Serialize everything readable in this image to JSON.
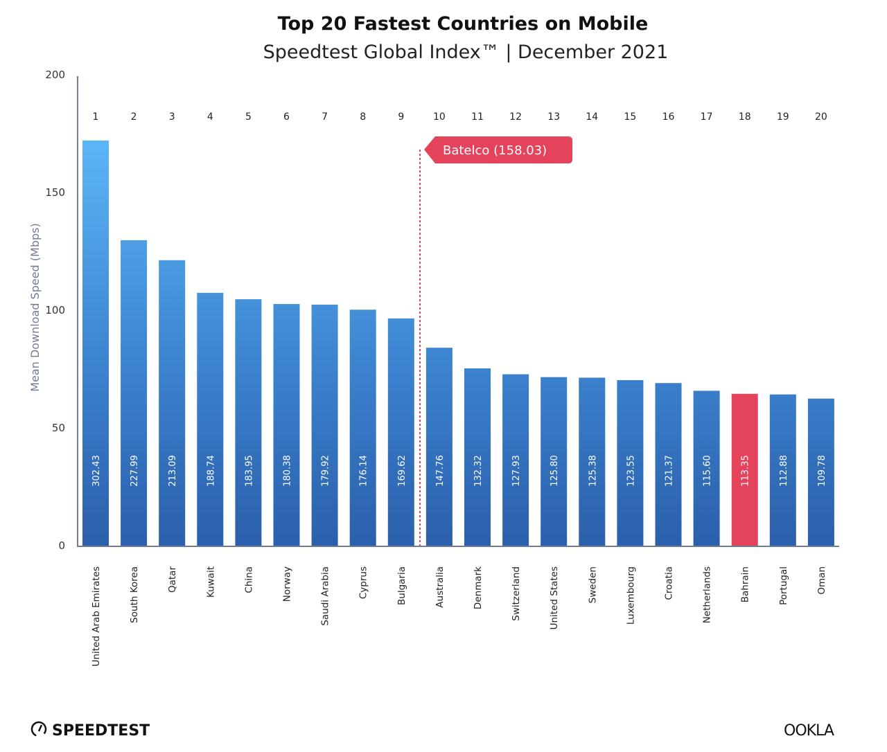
{
  "chart_data": {
    "type": "bar",
    "title": "Top 20 Fastest Countries on Mobile",
    "subtitle": "Speedtest Global Index™ | December 2021",
    "ylabel": "Mean Download Speed (Mbps)",
    "xlabel": "",
    "ylim": [
      0,
      200
    ],
    "yticks": [
      0,
      50,
      100,
      150,
      200
    ],
    "grid": false,
    "ranks": [
      "1",
      "2",
      "3",
      "4",
      "5",
      "6",
      "7",
      "8",
      "9",
      "10",
      "11",
      "12",
      "13",
      "14",
      "15",
      "16",
      "17",
      "18",
      "19",
      "20"
    ],
    "categories": [
      "United Arab Emirates",
      "South Korea",
      "Qatar",
      "Kuwait",
      "China",
      "Norway",
      "Saudi Arabia",
      "Cyprus",
      "Bulgaria",
      "Australia",
      "Denmark",
      "Switzerland",
      "United States",
      "Sweden",
      "Luxembourg",
      "Croatia",
      "Netherlands",
      "Bahrain",
      "Portugal",
      "Oman"
    ],
    "values": [
      302.43,
      227.99,
      213.09,
      188.74,
      183.95,
      180.38,
      179.92,
      176.14,
      169.62,
      147.76,
      132.32,
      127.93,
      125.8,
      125.38,
      123.55,
      121.37,
      115.6,
      113.35,
      112.88,
      109.78
    ],
    "value_labels": [
      "302.43",
      "227.99",
      "213.09",
      "188.74",
      "183.95",
      "180.38",
      "179.92",
      "176.14",
      "169.62",
      "147.76",
      "132.32",
      "127.93",
      "125.80",
      "125.38",
      "123.55",
      "121.37",
      "115.60",
      "113.35",
      "112.88",
      "109.78"
    ],
    "highlight": "Bahrain",
    "annotation": {
      "text": "Batelco  (158.03)",
      "value": 158.03,
      "position": "between ranks 9 and 10"
    },
    "colors": {
      "bar_top": "#5bb6f7",
      "bar_bottom": "#2b5fab",
      "highlight": "#e5425c",
      "annotation": "#e5425c",
      "axis": "#6f7c93"
    }
  },
  "branding": {
    "left": "SPEEDTEST",
    "right": "OOKLA"
  }
}
